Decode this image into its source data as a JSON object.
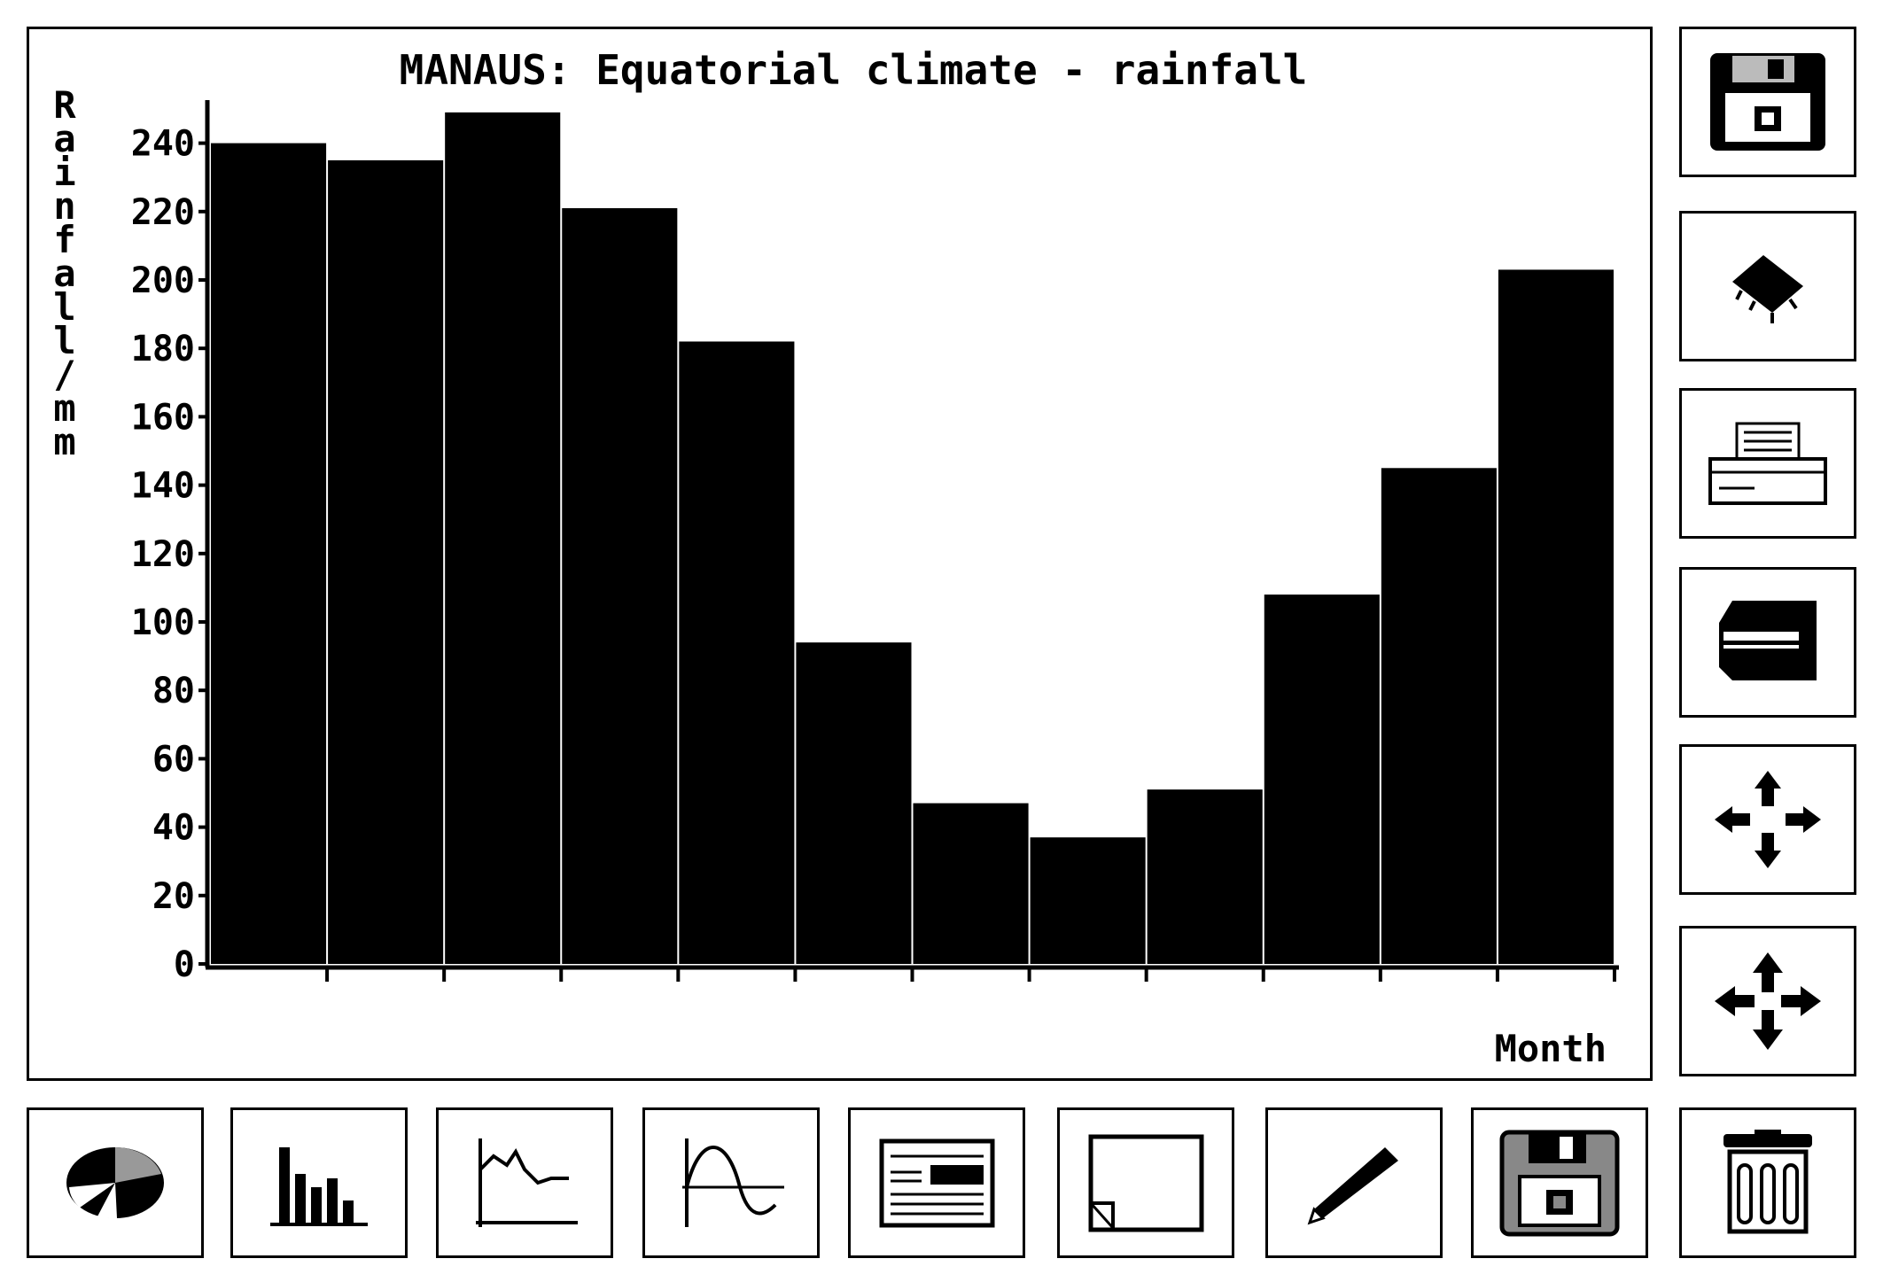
{
  "chart_data": {
    "type": "bar",
    "title": "MANAUS: Equatorial climate - rainfall",
    "ylabel": "Rainfall/mm",
    "xlabel": "Month",
    "ylim": [
      0,
      250
    ],
    "yticks": [
      "0",
      "20",
      "40",
      "60",
      "80",
      "100",
      "120",
      "140",
      "160",
      "180",
      "200",
      "220",
      "240"
    ],
    "series": [
      {
        "values": [
          240,
          235,
          249,
          221,
          182,
          94,
          47,
          37,
          51,
          108,
          145,
          203
        ]
      }
    ],
    "grid": false
  },
  "toolbar_right": [
    {
      "name": "save-disk-icon"
    },
    {
      "name": "chip-icon"
    },
    {
      "name": "printer-icon"
    },
    {
      "name": "plotter-icon"
    },
    {
      "name": "move-arrows-icon"
    },
    {
      "name": "resize-arrows-icon"
    }
  ],
  "toolbar_bottom": [
    {
      "name": "pie-chart-icon"
    },
    {
      "name": "bar-chart-icon"
    },
    {
      "name": "line-graph-icon"
    },
    {
      "name": "curve-graph-icon"
    },
    {
      "name": "text-document-icon"
    },
    {
      "name": "blank-page-icon"
    },
    {
      "name": "pencil-icon"
    },
    {
      "name": "floppy-disk-icon"
    },
    {
      "name": "trash-can-icon"
    }
  ]
}
